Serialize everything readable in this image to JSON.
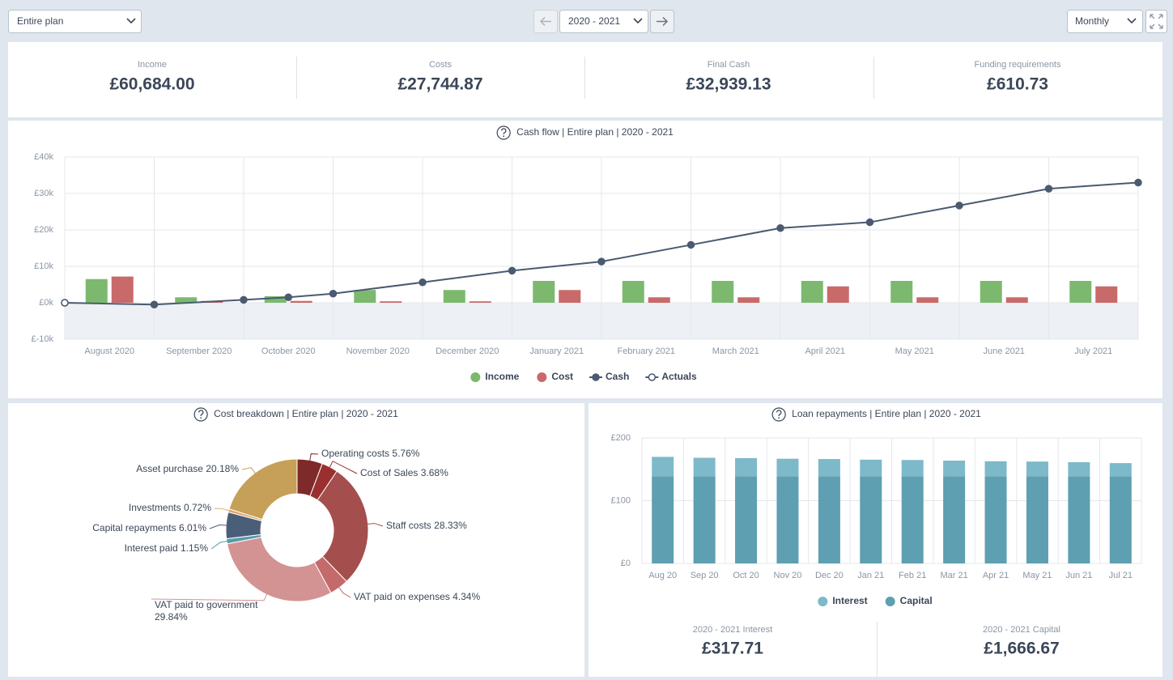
{
  "toolbar": {
    "plan": "Entire plan",
    "period": "2020 - 2021",
    "interval": "Monthly"
  },
  "kpis": [
    {
      "label": "Income",
      "value": "£60,684.00"
    },
    {
      "label": "Costs",
      "value": "£27,744.87"
    },
    {
      "label": "Final Cash",
      "value": "£32,939.13"
    },
    {
      "label": "Funding requirements",
      "value": "£610.73"
    }
  ],
  "chart_data": [
    {
      "type": "bar",
      "title": "Cash flow | Entire plan | 2020 - 2021",
      "categories": [
        "August 2020",
        "September 2020",
        "October 2020",
        "November 2020",
        "December 2020",
        "January 2021",
        "February 2021",
        "March 2021",
        "April 2021",
        "May 2021",
        "June 2021",
        "July 2021"
      ],
      "ylim": [
        -10000,
        40000
      ],
      "yticks": [
        {
          "value": -10000,
          "label": "£-10k"
        },
        {
          "value": 0,
          "label": "£0k"
        },
        {
          "value": 10000,
          "label": "£10k"
        },
        {
          "value": 20000,
          "label": "£20k"
        },
        {
          "value": 30000,
          "label": "£30k"
        },
        {
          "value": 40000,
          "label": "£40k"
        }
      ],
      "grid": true,
      "legend": "bottom",
      "series": [
        {
          "name": "Income",
          "type": "bar",
          "color": "#7cb96e",
          "values": [
            6500,
            1500,
            1800,
            3500,
            3500,
            6000,
            6000,
            6000,
            6000,
            6000,
            6000,
            6000
          ]
        },
        {
          "name": "Cost",
          "type": "bar",
          "color": "#c96a6a",
          "values": [
            7200,
            500,
            500,
            400,
            400,
            3500,
            1500,
            1500,
            4500,
            1500,
            1500,
            4500
          ]
        },
        {
          "name": "Cash",
          "type": "line",
          "color": "#4a5a70",
          "x": [
            0,
            1,
            2,
            2.5,
            3,
            4,
            5,
            6,
            7,
            8,
            9,
            10,
            11,
            12
          ],
          "values": [
            0,
            -500,
            800,
            1500,
            2500,
            5600,
            8800,
            11300,
            15900,
            20500,
            22100,
            26700,
            31300,
            33000
          ]
        },
        {
          "name": "Actuals",
          "type": "line",
          "marker": "hollow",
          "color": "#4a5a70",
          "x": [
            0
          ],
          "values": [
            0
          ]
        }
      ]
    },
    {
      "type": "pie",
      "donut": true,
      "title": "Cost breakdown | Entire plan | 2020 - 2021",
      "categories": [
        "Operating costs",
        "Cost of Sales",
        "Staff costs",
        "VAT paid on expenses",
        "VAT paid to government",
        "Interest paid",
        "Capital repayments",
        "Investments",
        "Asset purchase"
      ],
      "values": [
        5.76,
        3.68,
        28.33,
        4.34,
        29.84,
        1.15,
        6.01,
        0.72,
        20.18
      ],
      "value_labels": [
        "5.76%",
        "3.68%",
        "28.33%",
        "4.34%",
        "29.84%",
        "1.15%",
        "6.01%",
        "0.72%",
        "20.18%"
      ],
      "colors": [
        "#7e2a2a",
        "#99302f",
        "#a54e4e",
        "#c46a6a",
        "#d39393",
        "#5b9aab",
        "#4b5e77",
        "#e0a66a",
        "#c6a058"
      ]
    },
    {
      "type": "bar",
      "stacked": true,
      "title": "Loan repayments | Entire plan | 2020 - 2021",
      "categories": [
        "Aug 20",
        "Sep 20",
        "Oct 20",
        "Nov 20",
        "Dec 20",
        "Jan 21",
        "Feb 21",
        "Mar 21",
        "Apr 21",
        "May 21",
        "Jun 21",
        "Jul 21"
      ],
      "ylim": [
        0,
        200
      ],
      "yticks": [
        {
          "value": 0,
          "label": "£0"
        },
        {
          "value": 100,
          "label": "£100"
        },
        {
          "value": 200,
          "label": "£200"
        }
      ],
      "grid": true,
      "legend": "bottom",
      "series": [
        {
          "name": "Interest",
          "color": "#7db9c9",
          "values": [
            31,
            29.5,
            29,
            28,
            27.5,
            26.5,
            26,
            25,
            24,
            23.5,
            22.5,
            21
          ]
        },
        {
          "name": "Capital",
          "color": "#5e9fb1",
          "values": [
            138.89,
            138.89,
            138.89,
            138.89,
            138.89,
            138.89,
            138.89,
            138.89,
            138.89,
            138.89,
            138.89,
            138.89
          ]
        }
      ]
    }
  ],
  "loan_summary": [
    {
      "label": "2020 - 2021 Interest",
      "value": "£317.71"
    },
    {
      "label": "2020 - 2021 Capital",
      "value": "£1,666.67"
    }
  ]
}
